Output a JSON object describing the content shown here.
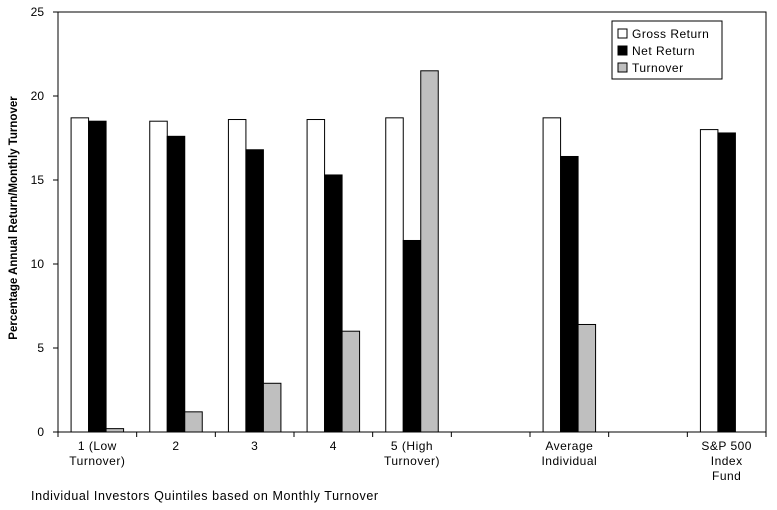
{
  "chart_data": {
    "type": "bar",
    "title": "",
    "xlabel": "Individual Investors Quintiles based on Monthly Turnover",
    "ylabel": "Percentage Annual Return/Monthly Turnover",
    "ylim": [
      0,
      25
    ],
    "yticks": [
      "0",
      "5",
      "10",
      "15",
      "20",
      "25"
    ],
    "grid": false,
    "legend_position": "top-right",
    "categories": [
      [
        "1 (Low",
        "Turnover)"
      ],
      [
        "2"
      ],
      [
        "3"
      ],
      [
        "4"
      ],
      [
        "5 (High",
        "Turnover)"
      ],
      [],
      [
        "Average",
        "Individual"
      ],
      [],
      [
        "S&P 500",
        "Index",
        "Fund"
      ]
    ],
    "series": [
      {
        "name": "Gross Return",
        "color": "#ffffff",
        "values": [
          18.7,
          18.5,
          18.6,
          18.6,
          18.7,
          null,
          18.7,
          null,
          18.0
        ]
      },
      {
        "name": "Net Return",
        "color": "#000000",
        "values": [
          18.5,
          17.6,
          16.8,
          15.3,
          11.4,
          null,
          16.4,
          null,
          17.8
        ]
      },
      {
        "name": "Turnover",
        "color": "#bfbfbf",
        "values": [
          0.2,
          1.2,
          2.9,
          6.0,
          21.5,
          null,
          6.4,
          null,
          null
        ]
      }
    ]
  }
}
